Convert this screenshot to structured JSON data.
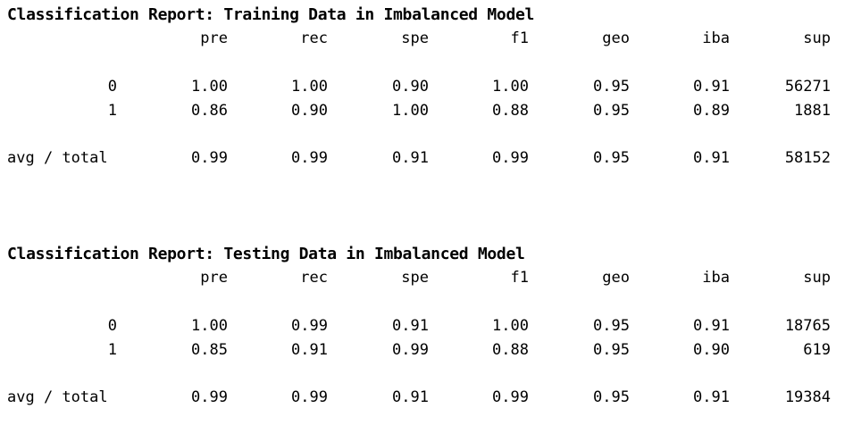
{
  "reports": [
    {
      "title": "Classification Report: Training Data in Imbalanced Model",
      "headers": [
        "pre",
        "rec",
        "spe",
        "f1",
        "geo",
        "iba",
        "sup"
      ],
      "rows": [
        {
          "label": "0",
          "values": [
            "1.00",
            "1.00",
            "0.90",
            "1.00",
            "0.95",
            "0.91",
            "56271"
          ]
        },
        {
          "label": "1",
          "values": [
            "0.86",
            "0.90",
            "1.00",
            "0.88",
            "0.95",
            "0.89",
            "1881"
          ]
        }
      ],
      "total": {
        "label": "avg / total",
        "values": [
          "0.99",
          "0.99",
          "0.91",
          "0.99",
          "0.95",
          "0.91",
          "58152"
        ]
      }
    },
    {
      "title": "Classification Report: Testing Data in Imbalanced Model",
      "headers": [
        "pre",
        "rec",
        "spe",
        "f1",
        "geo",
        "iba",
        "sup"
      ],
      "rows": [
        {
          "label": "0",
          "values": [
            "1.00",
            "0.99",
            "0.91",
            "1.00",
            "0.95",
            "0.91",
            "18765"
          ]
        },
        {
          "label": "1",
          "values": [
            "0.85",
            "0.91",
            "0.99",
            "0.88",
            "0.95",
            "0.90",
            "619"
          ]
        }
      ],
      "total": {
        "label": "avg / total",
        "values": [
          "0.99",
          "0.99",
          "0.91",
          "0.99",
          "0.95",
          "0.91",
          "19384"
        ]
      }
    }
  ]
}
